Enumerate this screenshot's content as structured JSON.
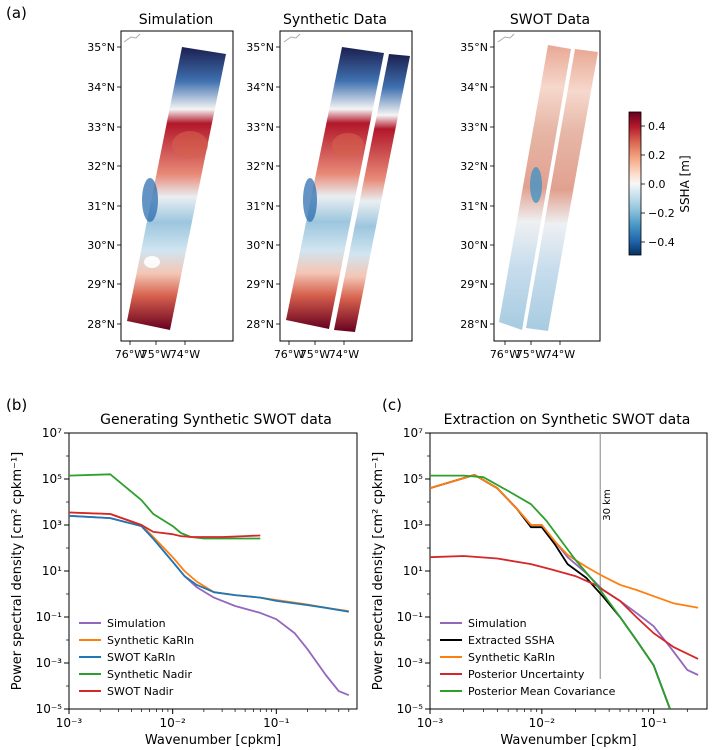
{
  "panel_labels": [
    "(a)",
    "(b)",
    "(c)"
  ],
  "maps": {
    "titles": [
      "Simulation",
      "Synthetic Data",
      "SWOT Data"
    ],
    "lat_ticks": [
      "35°N",
      "34°N",
      "33°N",
      "32°N",
      "31°N",
      "30°N",
      "29°N",
      "28°N"
    ],
    "lon_ticks": [
      "76°W",
      "75°W",
      "74°W"
    ],
    "colorbar": {
      "label": "SSHA [m]",
      "ticks": [
        "0.4",
        "0.2",
        "0.0",
        "−0.2",
        "−0.4"
      ],
      "colors": [
        "#67001f",
        "#b2182b",
        "#d6604d",
        "#f4a582",
        "#fddbc7",
        "#f7f7f7",
        "#d1e5f0",
        "#92c5de",
        "#4393c3",
        "#2166ac",
        "#053061"
      ]
    }
  },
  "chart_data": [
    {
      "type": "line",
      "title": "Generating Synthetic SWOT data",
      "xlabel": "Wavenumber [cpkm]",
      "ylabel": "Power spectral density [cm² cpkm⁻¹]",
      "xscale": "log",
      "yscale": "log",
      "xlim": [
        0.001,
        0.6
      ],
      "ylim": [
        1e-05,
        10000000.0
      ],
      "x_ticks": [
        "10⁻³",
        "10⁻²",
        "10⁻¹"
      ],
      "y_ticks": [
        "10⁷",
        "10⁵",
        "10³",
        "10¹",
        "10⁻¹",
        "10⁻³",
        "10⁻⁵"
      ],
      "legend": "lower-left",
      "series": [
        {
          "name": "Simulation",
          "color": "#9467bd",
          "x": [
            0.001,
            0.0025,
            0.005,
            0.0065,
            0.01,
            0.013,
            0.017,
            0.025,
            0.04,
            0.07,
            0.1,
            0.15,
            0.2,
            0.3,
            0.4,
            0.5
          ],
          "y": [
            2500.0,
            2000.0,
            900.0,
            250.0,
            25.0,
            6,
            2,
            0.7,
            0.3,
            0.15,
            0.08,
            0.02,
            0.004,
            0.0003,
            6e-05,
            4e-05
          ]
        },
        {
          "name": "Synthetic KaRIn",
          "color": "#ff7f0e",
          "x": [
            0.001,
            0.0025,
            0.005,
            0.0065,
            0.01,
            0.013,
            0.017,
            0.025,
            0.04,
            0.07,
            0.1,
            0.2,
            0.3,
            0.5
          ],
          "y": [
            3500.0,
            3000.0,
            1000.0,
            300.0,
            40.0,
            10.0,
            3.5,
            1.2,
            0.9,
            0.7,
            0.55,
            0.35,
            0.25,
            0.18
          ]
        },
        {
          "name": "SWOT KaRIn",
          "color": "#1f77b4",
          "x": [
            0.001,
            0.0025,
            0.005,
            0.0065,
            0.01,
            0.013,
            0.017,
            0.025,
            0.04,
            0.07,
            0.1,
            0.2,
            0.3,
            0.5
          ],
          "y": [
            2500.0,
            2000.0,
            900.0,
            250.0,
            25.0,
            6,
            2.5,
            1.2,
            0.9,
            0.7,
            0.5,
            0.33,
            0.25,
            0.17
          ]
        },
        {
          "name": "Synthetic Nadir",
          "color": "#2ca02c",
          "x": [
            0.001,
            0.0025,
            0.005,
            0.0065,
            0.01,
            0.012,
            0.015,
            0.02,
            0.03,
            0.05,
            0.07
          ],
          "y": [
            140000.0,
            160000.0,
            12000.0,
            3000.0,
            900.0,
            450.0,
            300.0,
            260.0,
            260.0,
            260.0,
            260.0
          ]
        },
        {
          "name": "SWOT Nadir",
          "color": "#d62728",
          "x": [
            0.001,
            0.0025,
            0.005,
            0.0065,
            0.01,
            0.012,
            0.015,
            0.02,
            0.03,
            0.05,
            0.07
          ],
          "y": [
            3500.0,
            3000.0,
            1000.0,
            500.0,
            400.0,
            330.0,
            300.0,
            300.0,
            300.0,
            330.0,
            350.0
          ]
        }
      ]
    },
    {
      "type": "line",
      "title": "Extraction on Synthetic SWOT data",
      "xlabel": "Wavenumber [cpkm]",
      "ylabel": "Power spectral density [cm² cpkm⁻¹]",
      "xscale": "log",
      "yscale": "log",
      "xlim": [
        0.001,
        0.3
      ],
      "ylim": [
        1e-05,
        10000000.0
      ],
      "x_ticks": [
        "10⁻³",
        "10⁻²",
        "10⁻¹"
      ],
      "y_ticks": [
        "10⁷",
        "10⁵",
        "10³",
        "10¹",
        "10⁻¹",
        "10⁻³",
        "10⁻⁵"
      ],
      "vline": {
        "x": 0.0333,
        "label": "30 km"
      },
      "legend": "lower-left",
      "series": [
        {
          "name": "Simulation",
          "color": "#9467bd",
          "x": [
            0.001,
            0.0025,
            0.004,
            0.006,
            0.008,
            0.01,
            0.013,
            0.017,
            0.025,
            0.035,
            0.05,
            0.07,
            0.1,
            0.14,
            0.2,
            0.25
          ],
          "y": [
            40000.0,
            150000.0,
            40000.0,
            5000.0,
            1000.0,
            1000.0,
            200.0,
            40,
            8,
            1.5,
            0.5,
            0.15,
            0.04,
            0.005,
            0.0005,
            0.0003
          ]
        },
        {
          "name": "Extracted SSHA",
          "color": "#000000",
          "x": [
            0.001,
            0.0025,
            0.004,
            0.006,
            0.008,
            0.01,
            0.013,
            0.017,
            0.025,
            0.035,
            0.05,
            0.07,
            0.1,
            0.14
          ],
          "y": [
            40000.0,
            150000.0,
            40000.0,
            5000.0,
            800.0,
            800.0,
            150.0,
            20,
            5,
            0.8,
            0.1,
            0.01,
            0.0008,
            1e-05
          ]
        },
        {
          "name": "Synthetic KaRIn",
          "color": "#ff7f0e",
          "x": [
            0.001,
            0.0025,
            0.004,
            0.006,
            0.008,
            0.01,
            0.013,
            0.017,
            0.025,
            0.035,
            0.05,
            0.07,
            0.1,
            0.15,
            0.25
          ],
          "y": [
            40000.0,
            150000.0,
            40000.0,
            5000.0,
            1000.0,
            1000.0,
            200.0,
            50,
            15,
            6,
            2.5,
            1.5,
            0.8,
            0.4,
            0.25
          ]
        },
        {
          "name": "Posterior Uncertainty",
          "color": "#d62728",
          "x": [
            0.001,
            0.002,
            0.004,
            0.008,
            0.012,
            0.02,
            0.03,
            0.05,
            0.07,
            0.1,
            0.15,
            0.25
          ],
          "y": [
            40,
            45,
            35,
            20,
            12,
            6,
            2.5,
            0.5,
            0.1,
            0.02,
            0.005,
            0.0015
          ]
        },
        {
          "name": "Posterior Mean Covariance",
          "color": "#2ca02c",
          "x": [
            0.001,
            0.002,
            0.003,
            0.005,
            0.008,
            0.011,
            0.015,
            0.02,
            0.03,
            0.05,
            0.07,
            0.1,
            0.14
          ],
          "y": [
            140000.0,
            140000.0,
            120000.0,
            30000.0,
            8000.0,
            1500.0,
            200.0,
            30,
            3,
            0.1,
            0.01,
            0.0008,
            1e-05
          ]
        }
      ]
    }
  ]
}
